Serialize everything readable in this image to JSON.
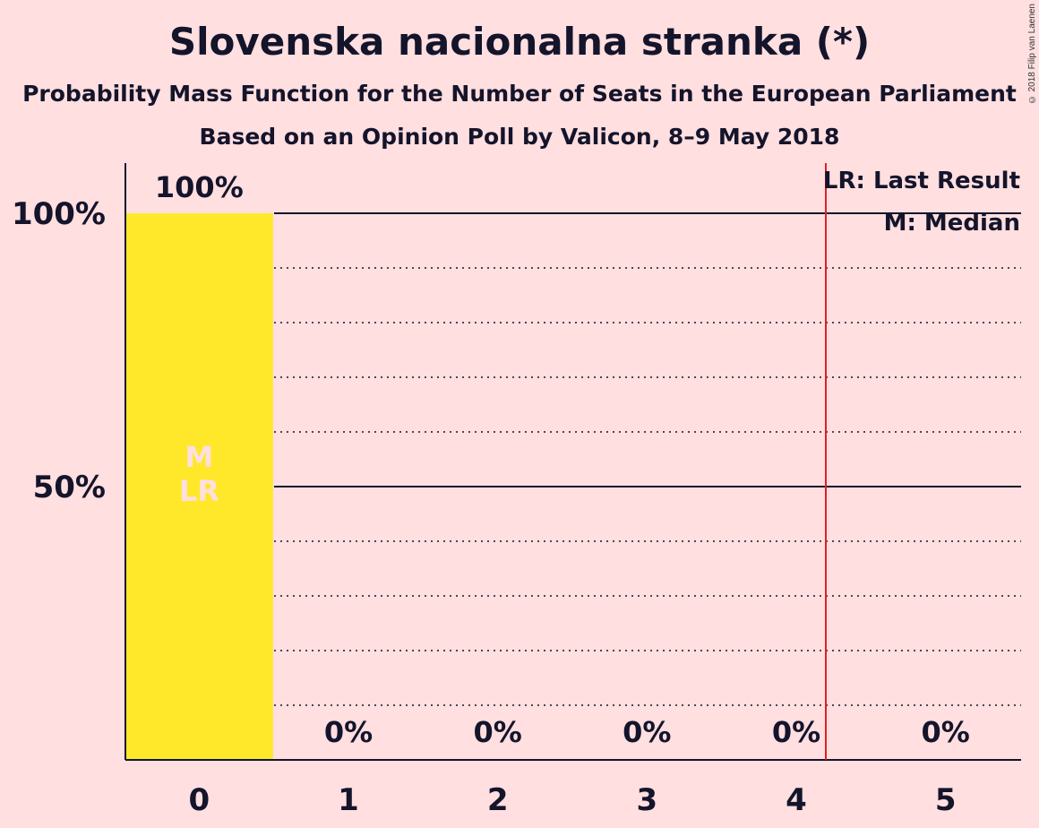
{
  "title": "Slovenska nacionalna stranka (*)",
  "subtitle_1": "Probability Mass Function for the Number of Seats in the European Parliament",
  "subtitle_2": "Based on an Opinion Poll by Valicon, 8–9 May 2018",
  "copyright": "© 2018 Filip van Laenen",
  "legend": {
    "last_result": "LR: Last Result",
    "median": "M: Median"
  },
  "colors": {
    "background": "#ffdfe0",
    "bar": "#ffe82a",
    "last_result_line": "#e0201e",
    "marker_text": "#ffdfe0",
    "text": "#14142b"
  },
  "chart_data": {
    "type": "bar",
    "categories": [
      "0",
      "1",
      "2",
      "3",
      "4",
      "5"
    ],
    "values": [
      100,
      0,
      0,
      0,
      0,
      0
    ],
    "data_labels": [
      "100%",
      "0%",
      "0%",
      "0%",
      "0%",
      "0%"
    ],
    "y_tick_labels": [
      {
        "value": 100,
        "label": "100%"
      },
      {
        "value": 50,
        "label": "50%"
      }
    ],
    "ylim": [
      0,
      100
    ],
    "major_gridlines": [
      100,
      50
    ],
    "minor_gridlines": [
      10,
      20,
      30,
      40,
      60,
      70,
      80,
      90
    ],
    "last_result_seat": 4.5,
    "bar_markers": [
      {
        "category": "0",
        "labels": [
          "M",
          "LR"
        ]
      }
    ],
    "legend_position": "top-right"
  }
}
